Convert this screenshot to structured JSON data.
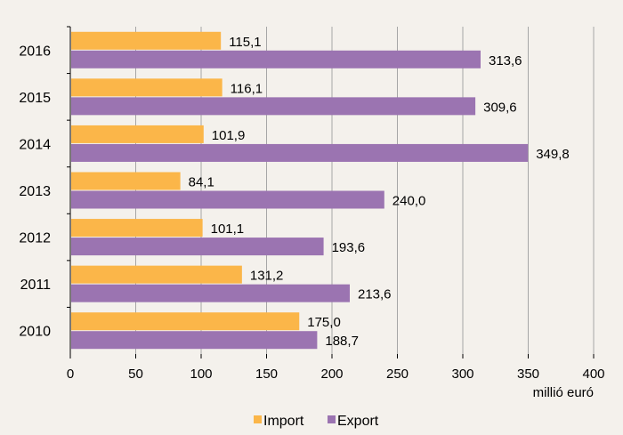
{
  "chart_data": {
    "type": "bar",
    "orientation": "horizontal",
    "categories": [
      "2016",
      "2015",
      "2014",
      "2013",
      "2012",
      "2011",
      "2010"
    ],
    "series": [
      {
        "name": "Import",
        "color": "#fbb649",
        "values": [
          115.1,
          116.1,
          101.9,
          84.1,
          101.1,
          131.2,
          175.0
        ],
        "labels": [
          "115,1",
          "116,1",
          "101,9",
          "84,1",
          "101,1",
          "131,2",
          "175,0"
        ]
      },
      {
        "name": "Export",
        "color": "#9b74b1",
        "values": [
          313.6,
          309.6,
          349.8,
          240.0,
          193.6,
          213.6,
          188.7
        ],
        "labels": [
          "313,6",
          "309,6",
          "349,8",
          "240,0",
          "193,6",
          "213,6",
          "188,7"
        ]
      }
    ],
    "xlabel": "millió euró",
    "xlim": [
      0,
      400
    ],
    "xticks": [
      0,
      50,
      100,
      150,
      200,
      250,
      300,
      350,
      400
    ],
    "grid": true,
    "legend_position": "bottom"
  }
}
